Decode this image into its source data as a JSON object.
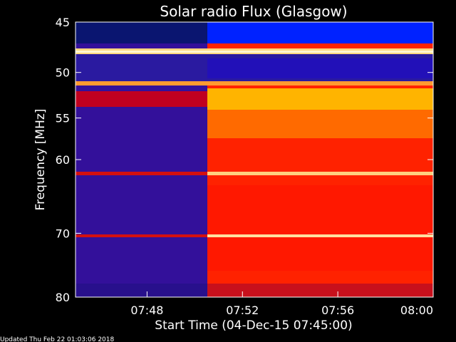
{
  "chart_data": {
    "type": "heatmap",
    "title": "Solar radio Flux (Glasgow)",
    "xlabel": "Start Time (04-Dec-15 07:45:00)",
    "ylabel": "Frequency [MHz]",
    "footer": "Updated Thu Feb 22 01:03:06 2018",
    "x_ticks": [
      "07:48",
      "07:52",
      "07:56",
      "08:00"
    ],
    "x_tick_minutes": [
      48,
      52,
      56,
      60
    ],
    "xlim_minutes": [
      45,
      60
    ],
    "y_ticks": [
      45,
      50,
      55,
      60,
      70,
      80
    ],
    "ylim": [
      45,
      80
    ],
    "y_scale": "log",
    "colormap": [
      "#1a0066",
      "#3a00a0",
      "#0026ff",
      "#ff1a00",
      "#ff6a00",
      "#ffb000",
      "#ffe6a0"
    ],
    "burst_onset_minute": 50.6,
    "bright_lines_mhz": [
      48.8,
      52.5,
      64.5,
      72.0
    ]
  }
}
